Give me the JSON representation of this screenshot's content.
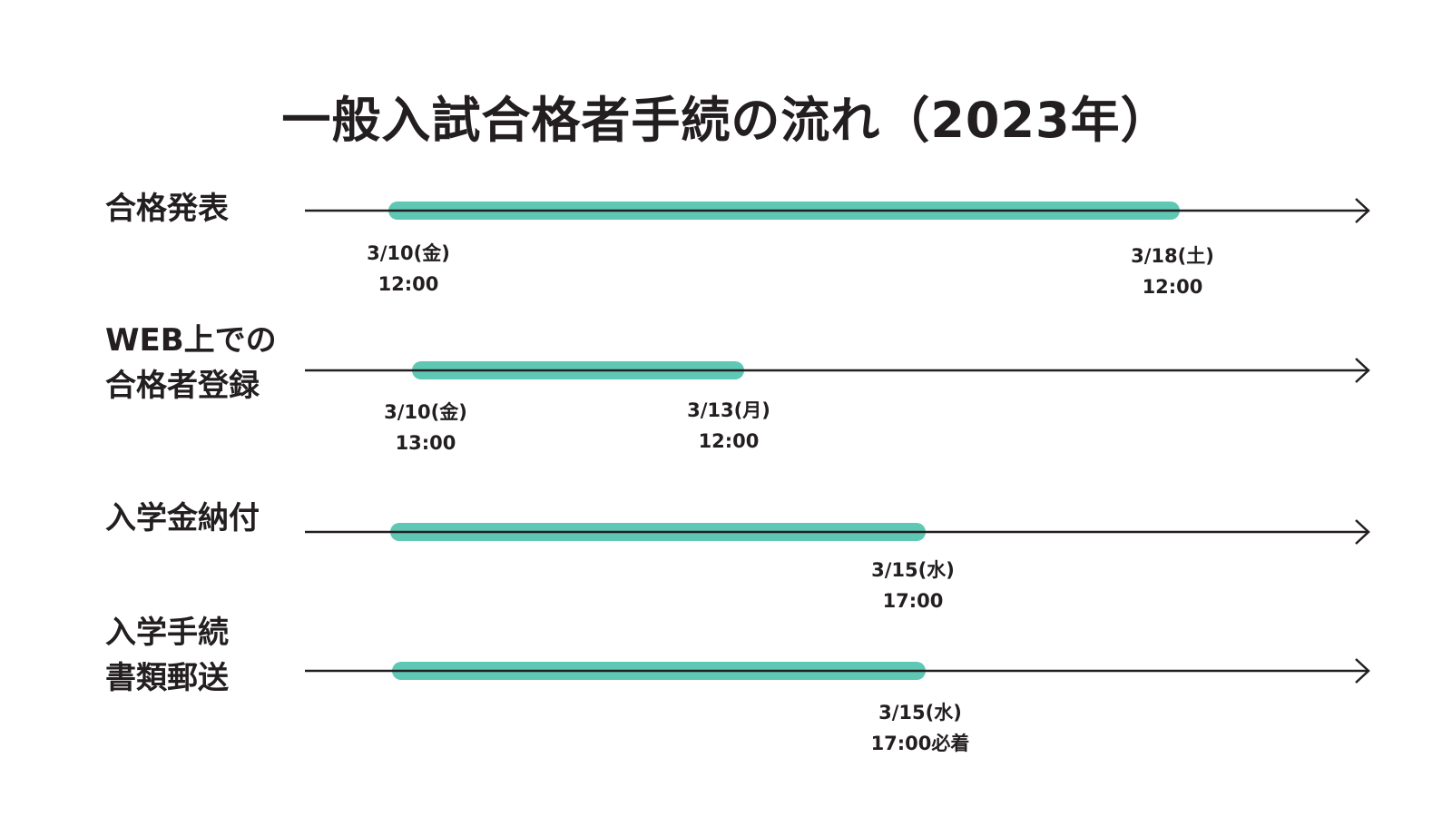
{
  "title": "一般入試合格者手続の流れ（2023年）",
  "colors": {
    "bar": "#5ec8b4",
    "line": "#231f20",
    "text": "#231f20"
  },
  "rows": [
    {
      "label_lines": [
        "合格発表"
      ],
      "dates": [
        {
          "line1": "3/10(金)",
          "line2": "12:00"
        },
        {
          "line1": "3/18(土)",
          "line2": "12:00"
        }
      ]
    },
    {
      "label_lines": [
        "WEB上での",
        "合格者登録"
      ],
      "dates": [
        {
          "line1": "3/10(金)",
          "line2": "13:00"
        },
        {
          "line1": "3/13(月)",
          "line2": "12:00"
        }
      ]
    },
    {
      "label_lines": [
        "入学金納付"
      ],
      "dates": [
        {
          "line1": "3/15(水)",
          "line2": "17:00"
        }
      ]
    },
    {
      "label_lines": [
        "入学手続",
        "書類郵送"
      ],
      "dates": [
        {
          "line1": "3/15(水)",
          "line2": "17:00必着"
        }
      ]
    }
  ]
}
